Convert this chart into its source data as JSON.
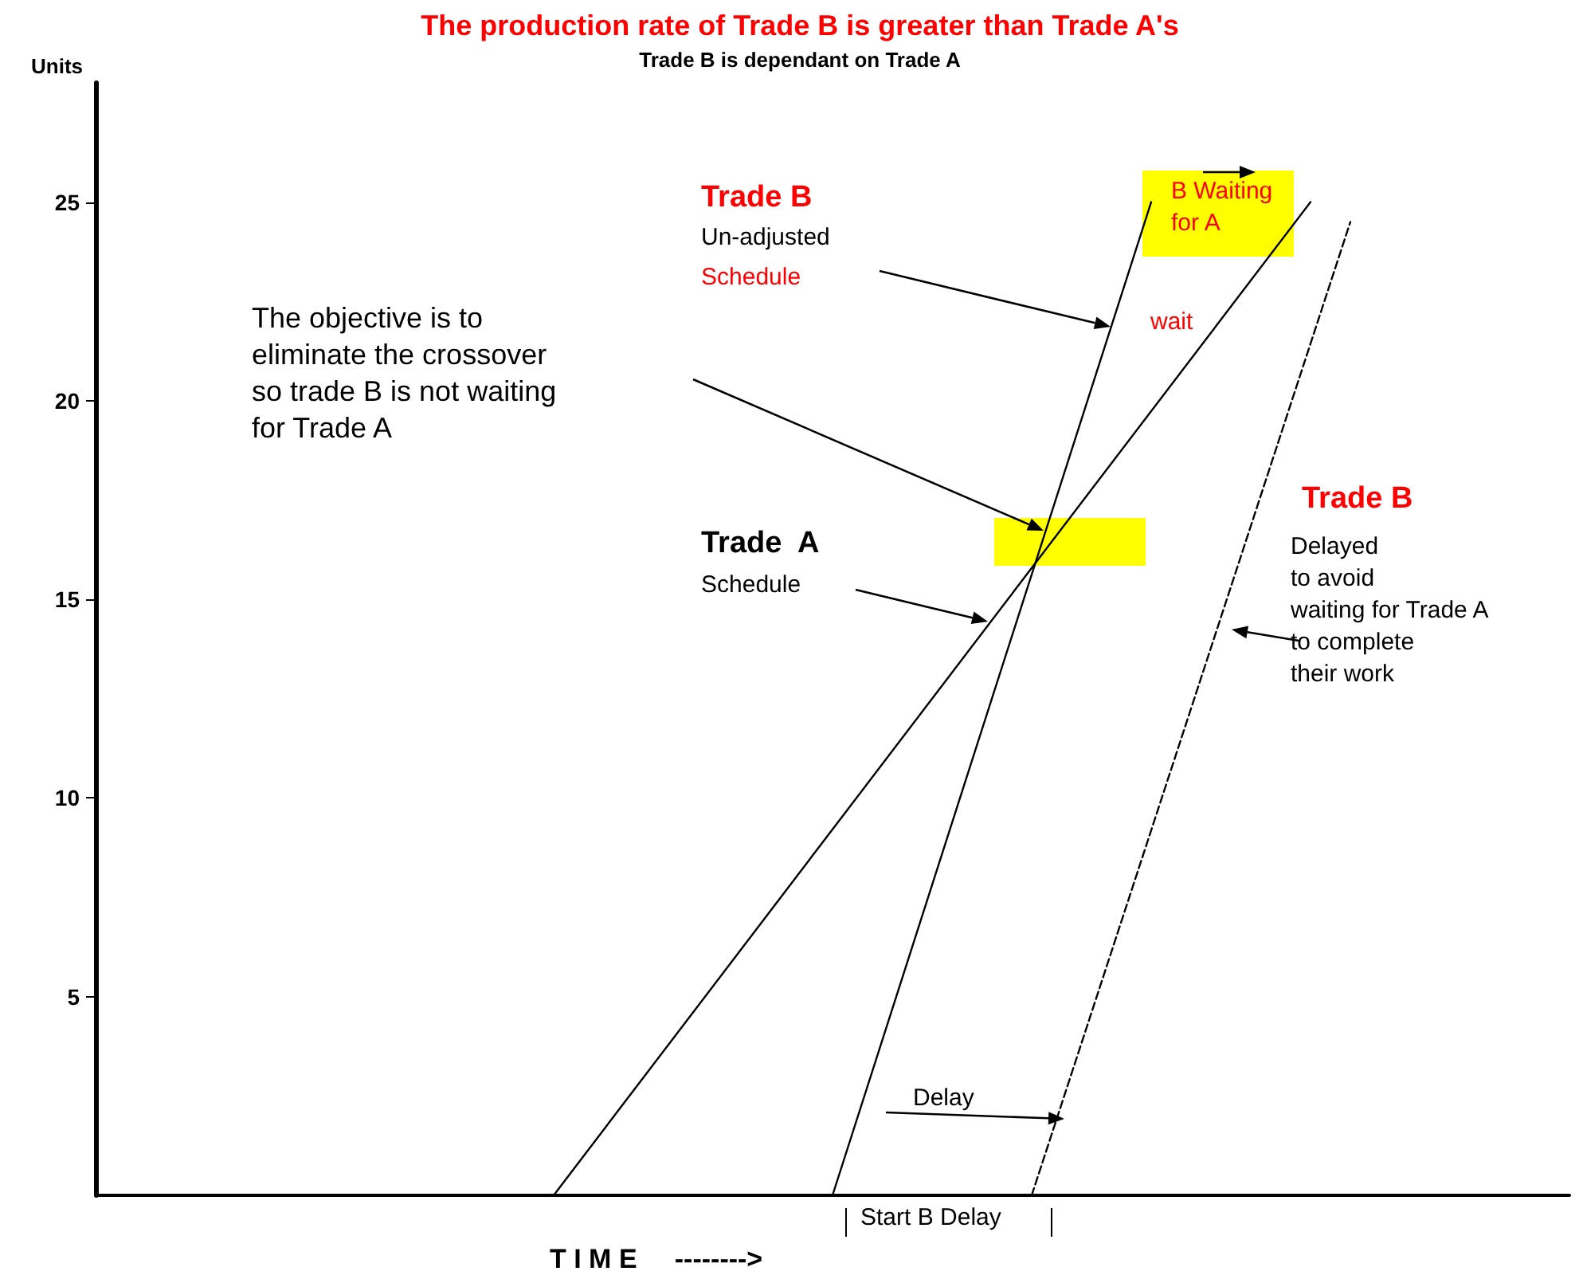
{
  "chart_data": {
    "type": "line",
    "title": "The production rate of Trade B is greater than Trade A's",
    "subtitle": "Trade B is dependant on Trade A",
    "ylabel": "Units",
    "categories": [
      null,
      null,
      null,
      null,
      null,
      null,
      null,
      null,
      null,
      null,
      null,
      null,
      null,
      null,
      null,
      null,
      null,
      null,
      null,
      null,
      null,
      null,
      null,
      null,
      null,
      null,
      null,
      null,
      null,
      null,
      null,
      null,
      null,
      null,
      null,
      null,
      null
    ],
    "series": [
      {
        "color": "#000000",
        "line_style": "solid",
        "values": [
          null,
          null,
          null,
          null,
          null,
          null,
          null,
          null,
          null,
          null,
          null,
          0,
          null,
          null,
          null,
          null,
          null,
          null,
          null,
          null,
          null,
          null,
          null,
          null,
          null,
          null,
          null,
          null,
          null,
          null,
          25,
          null,
          null,
          null,
          null,
          null,
          null
        ]
      },
      {
        "color": "#000000",
        "line_style": "solid",
        "values": [
          null,
          null,
          null,
          null,
          null,
          null,
          null,
          null,
          null,
          null,
          null,
          null,
          null,
          null,
          null,
          null,
          null,
          null,
          0,
          null,
          null,
          null,
          null,
          null,
          null,
          null,
          25,
          null,
          null,
          null,
          null,
          null,
          null,
          null,
          null,
          null,
          null
        ]
      },
      {
        "color": "#000000",
        "line_style": "dashed",
        "values": [
          null,
          null,
          null,
          null,
          null,
          null,
          null,
          null,
          null,
          null,
          null,
          null,
          null,
          null,
          null,
          null,
          null,
          null,
          null,
          null,
          null,
          null,
          null,
          0,
          null,
          null,
          null,
          null,
          null,
          null,
          null,
          24.5,
          null,
          null,
          null,
          null,
          null
        ]
      }
    ],
    "ylim": [
      0,
      28
    ],
    "yticks": [
      5,
      10,
      15,
      20,
      25
    ],
    "grid": false,
    "marker": "none",
    "tick_labels": "y",
    "annotations": [
      "Trade B",
      "Un-adjusted",
      "Schedule",
      "The objective is to\neliminate the crossover\nso trade B is not waiting\nfor Trade A",
      "Trade  A",
      "Schedule",
      "B Waiting\nfor A",
      "wait",
      "Trade B",
      "Delayed\nto avoid\nwaiting for Trade A\nto complete\ntheir work",
      "Delay",
      "Start B Delay",
      "T I M E     -------->"
    ]
  }
}
